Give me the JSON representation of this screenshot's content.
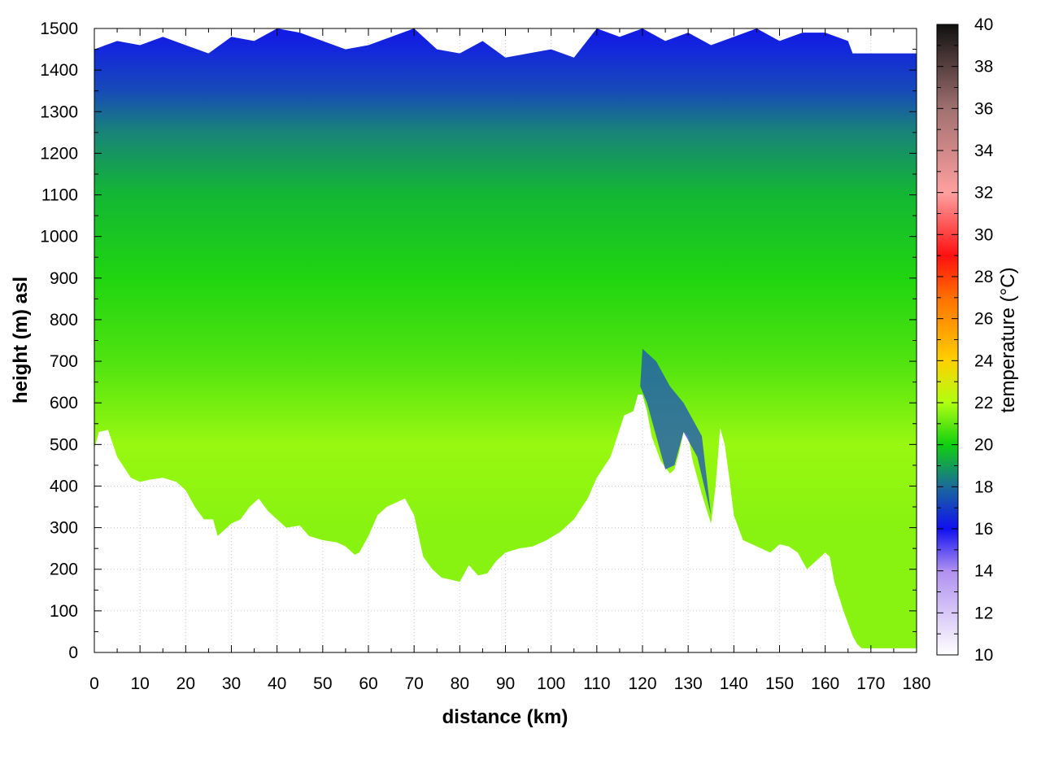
{
  "chart_data": {
    "type": "heatmap",
    "title": "",
    "xlabel": "distance (km)",
    "ylabel": "height (m) asl",
    "xlim": [
      0,
      180
    ],
    "ylim": [
      0,
      1500
    ],
    "x_ticks": [
      0,
      10,
      20,
      30,
      40,
      50,
      60,
      70,
      80,
      90,
      100,
      110,
      120,
      130,
      140,
      150,
      160,
      170,
      180
    ],
    "y_ticks": [
      0,
      100,
      200,
      300,
      400,
      500,
      600,
      700,
      800,
      900,
      1000,
      1100,
      1200,
      1300,
      1400,
      1500
    ],
    "grid": true,
    "colorbar": {
      "label": "temperature (°C)",
      "range": [
        10,
        40
      ],
      "ticks": [
        10,
        12,
        14,
        16,
        18,
        20,
        22,
        24,
        26,
        28,
        30,
        32,
        34,
        36,
        38,
        40
      ],
      "colormap": [
        {
          "value": 10,
          "color": "#ffffff"
        },
        {
          "value": 14,
          "color": "#b090f0"
        },
        {
          "value": 16,
          "color": "#1010f0"
        },
        {
          "value": 18,
          "color": "#1a6a9a"
        },
        {
          "value": 20,
          "color": "#10d010"
        },
        {
          "value": 22,
          "color": "#b0ff10"
        },
        {
          "value": 24,
          "color": "#ffd000"
        },
        {
          "value": 27,
          "color": "#ff7000"
        },
        {
          "value": 29,
          "color": "#ff1010"
        },
        {
          "value": 32,
          "color": "#ffa0a0"
        },
        {
          "value": 36,
          "color": "#a07070"
        },
        {
          "value": 40,
          "color": "#101010"
        }
      ]
    },
    "terrain_profile": {
      "distance": [
        0,
        1,
        3,
        5,
        8,
        10,
        12,
        15,
        18,
        20,
        22,
        24,
        26,
        27,
        28,
        30,
        32,
        34,
        36,
        38,
        40,
        42,
        45,
        47,
        50,
        53,
        55,
        57,
        58,
        60,
        62,
        64,
        66,
        68,
        70,
        72,
        74,
        76,
        78,
        80,
        82,
        84,
        86,
        88,
        90,
        93,
        96,
        99,
        102,
        105,
        108,
        110,
        113,
        116,
        118,
        119,
        120,
        121,
        122,
        124,
        126,
        127,
        128,
        129,
        130,
        131,
        133,
        135,
        136,
        137,
        138,
        139,
        140,
        142,
        144,
        146,
        148,
        150,
        152,
        154,
        156,
        158,
        160,
        161,
        162,
        164,
        166,
        167,
        168,
        170,
        175,
        180
      ],
      "height": [
        490,
        530,
        535,
        470,
        420,
        410,
        415,
        420,
        410,
        390,
        350,
        320,
        320,
        280,
        290,
        310,
        320,
        350,
        370,
        340,
        320,
        300,
        305,
        280,
        270,
        265,
        255,
        235,
        240,
        280,
        330,
        350,
        360,
        370,
        330,
        230,
        200,
        180,
        175,
        170,
        210,
        185,
        190,
        220,
        240,
        250,
        255,
        270,
        290,
        320,
        370,
        420,
        470,
        570,
        580,
        620,
        620,
        580,
        520,
        460,
        430,
        440,
        480,
        530,
        520,
        460,
        380,
        310,
        400,
        540,
        500,
        420,
        330,
        270,
        260,
        250,
        240,
        260,
        255,
        240,
        200,
        220,
        240,
        230,
        170,
        100,
        40,
        20,
        10,
        10,
        10,
        10
      ]
    },
    "top_of_data": {
      "distance": [
        0,
        5,
        10,
        15,
        20,
        25,
        30,
        35,
        40,
        45,
        50,
        55,
        60,
        65,
        70,
        75,
        80,
        85,
        90,
        95,
        100,
        105,
        110,
        115,
        120,
        125,
        130,
        135,
        140,
        145,
        150,
        155,
        160,
        165,
        166,
        170,
        180
      ],
      "height": [
        1450,
        1470,
        1460,
        1480,
        1460,
        1440,
        1480,
        1470,
        1500,
        1490,
        1470,
        1450,
        1460,
        1480,
        1500,
        1450,
        1440,
        1470,
        1430,
        1440,
        1450,
        1430,
        1500,
        1480,
        1500,
        1470,
        1490,
        1460,
        1480,
        1500,
        1470,
        1490,
        1490,
        1470,
        1440,
        1440,
        1440
      ]
    },
    "temperature_vs_height": [
      {
        "height": 0,
        "temperature": 21.5
      },
      {
        "height": 300,
        "temperature": 21.5
      },
      {
        "height": 500,
        "temperature": 21.7
      },
      {
        "height": 700,
        "temperature": 20.8
      },
      {
        "height": 900,
        "temperature": 20.2
      },
      {
        "height": 1100,
        "temperature": 19.5
      },
      {
        "height": 1250,
        "temperature": 18.5
      },
      {
        "height": 1350,
        "temperature": 17.3
      },
      {
        "height": 1450,
        "temperature": 16.5
      },
      {
        "height": 1500,
        "temperature": 16.2
      }
    ]
  }
}
